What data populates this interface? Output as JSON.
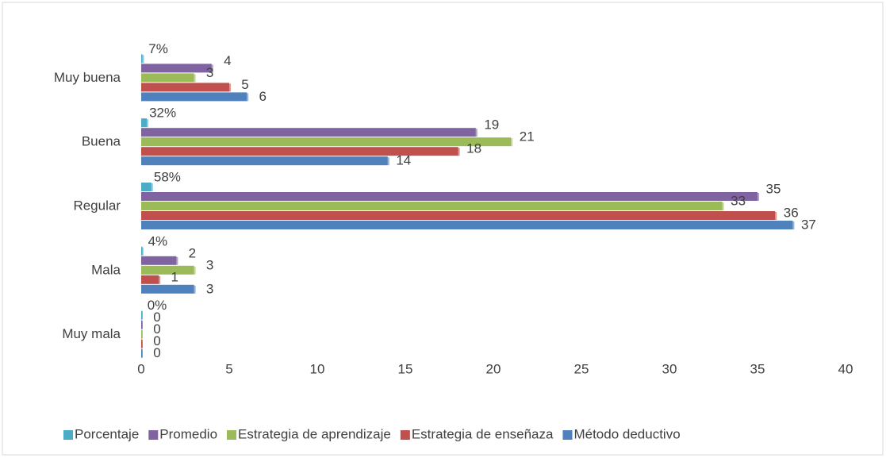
{
  "chart_data": {
    "type": "bar",
    "orientation": "horizontal",
    "categories": [
      "Muy buena",
      "Buena",
      "Regular",
      "Mala",
      "Muy mala"
    ],
    "series": [
      {
        "name": "Porcentaje",
        "color": "#4bacc6",
        "values": [
          0.07,
          0.32,
          0.58,
          0.04,
          0
        ],
        "value_labels": [
          "7%",
          "32%",
          "58%",
          "4%",
          "0%"
        ]
      },
      {
        "name": "Promedio",
        "color": "#8064a2",
        "values": [
          4,
          19,
          35,
          2,
          0
        ]
      },
      {
        "name": "Estrategia de aprendizaje",
        "color": "#9bbb59",
        "values": [
          3,
          21,
          33,
          3,
          0
        ]
      },
      {
        "name": "Estrategia de enseñaza",
        "color": "#c0504d",
        "values": [
          5,
          18,
          36,
          1,
          0
        ]
      },
      {
        "name": "Método deductivo",
        "color": "#4f81bd",
        "values": [
          6,
          14,
          37,
          3,
          0
        ]
      }
    ],
    "xlim": [
      0,
      40
    ],
    "xticks": [
      0,
      5,
      10,
      15,
      20,
      25,
      30,
      35,
      40
    ],
    "grid": false,
    "legend": "bottom"
  }
}
